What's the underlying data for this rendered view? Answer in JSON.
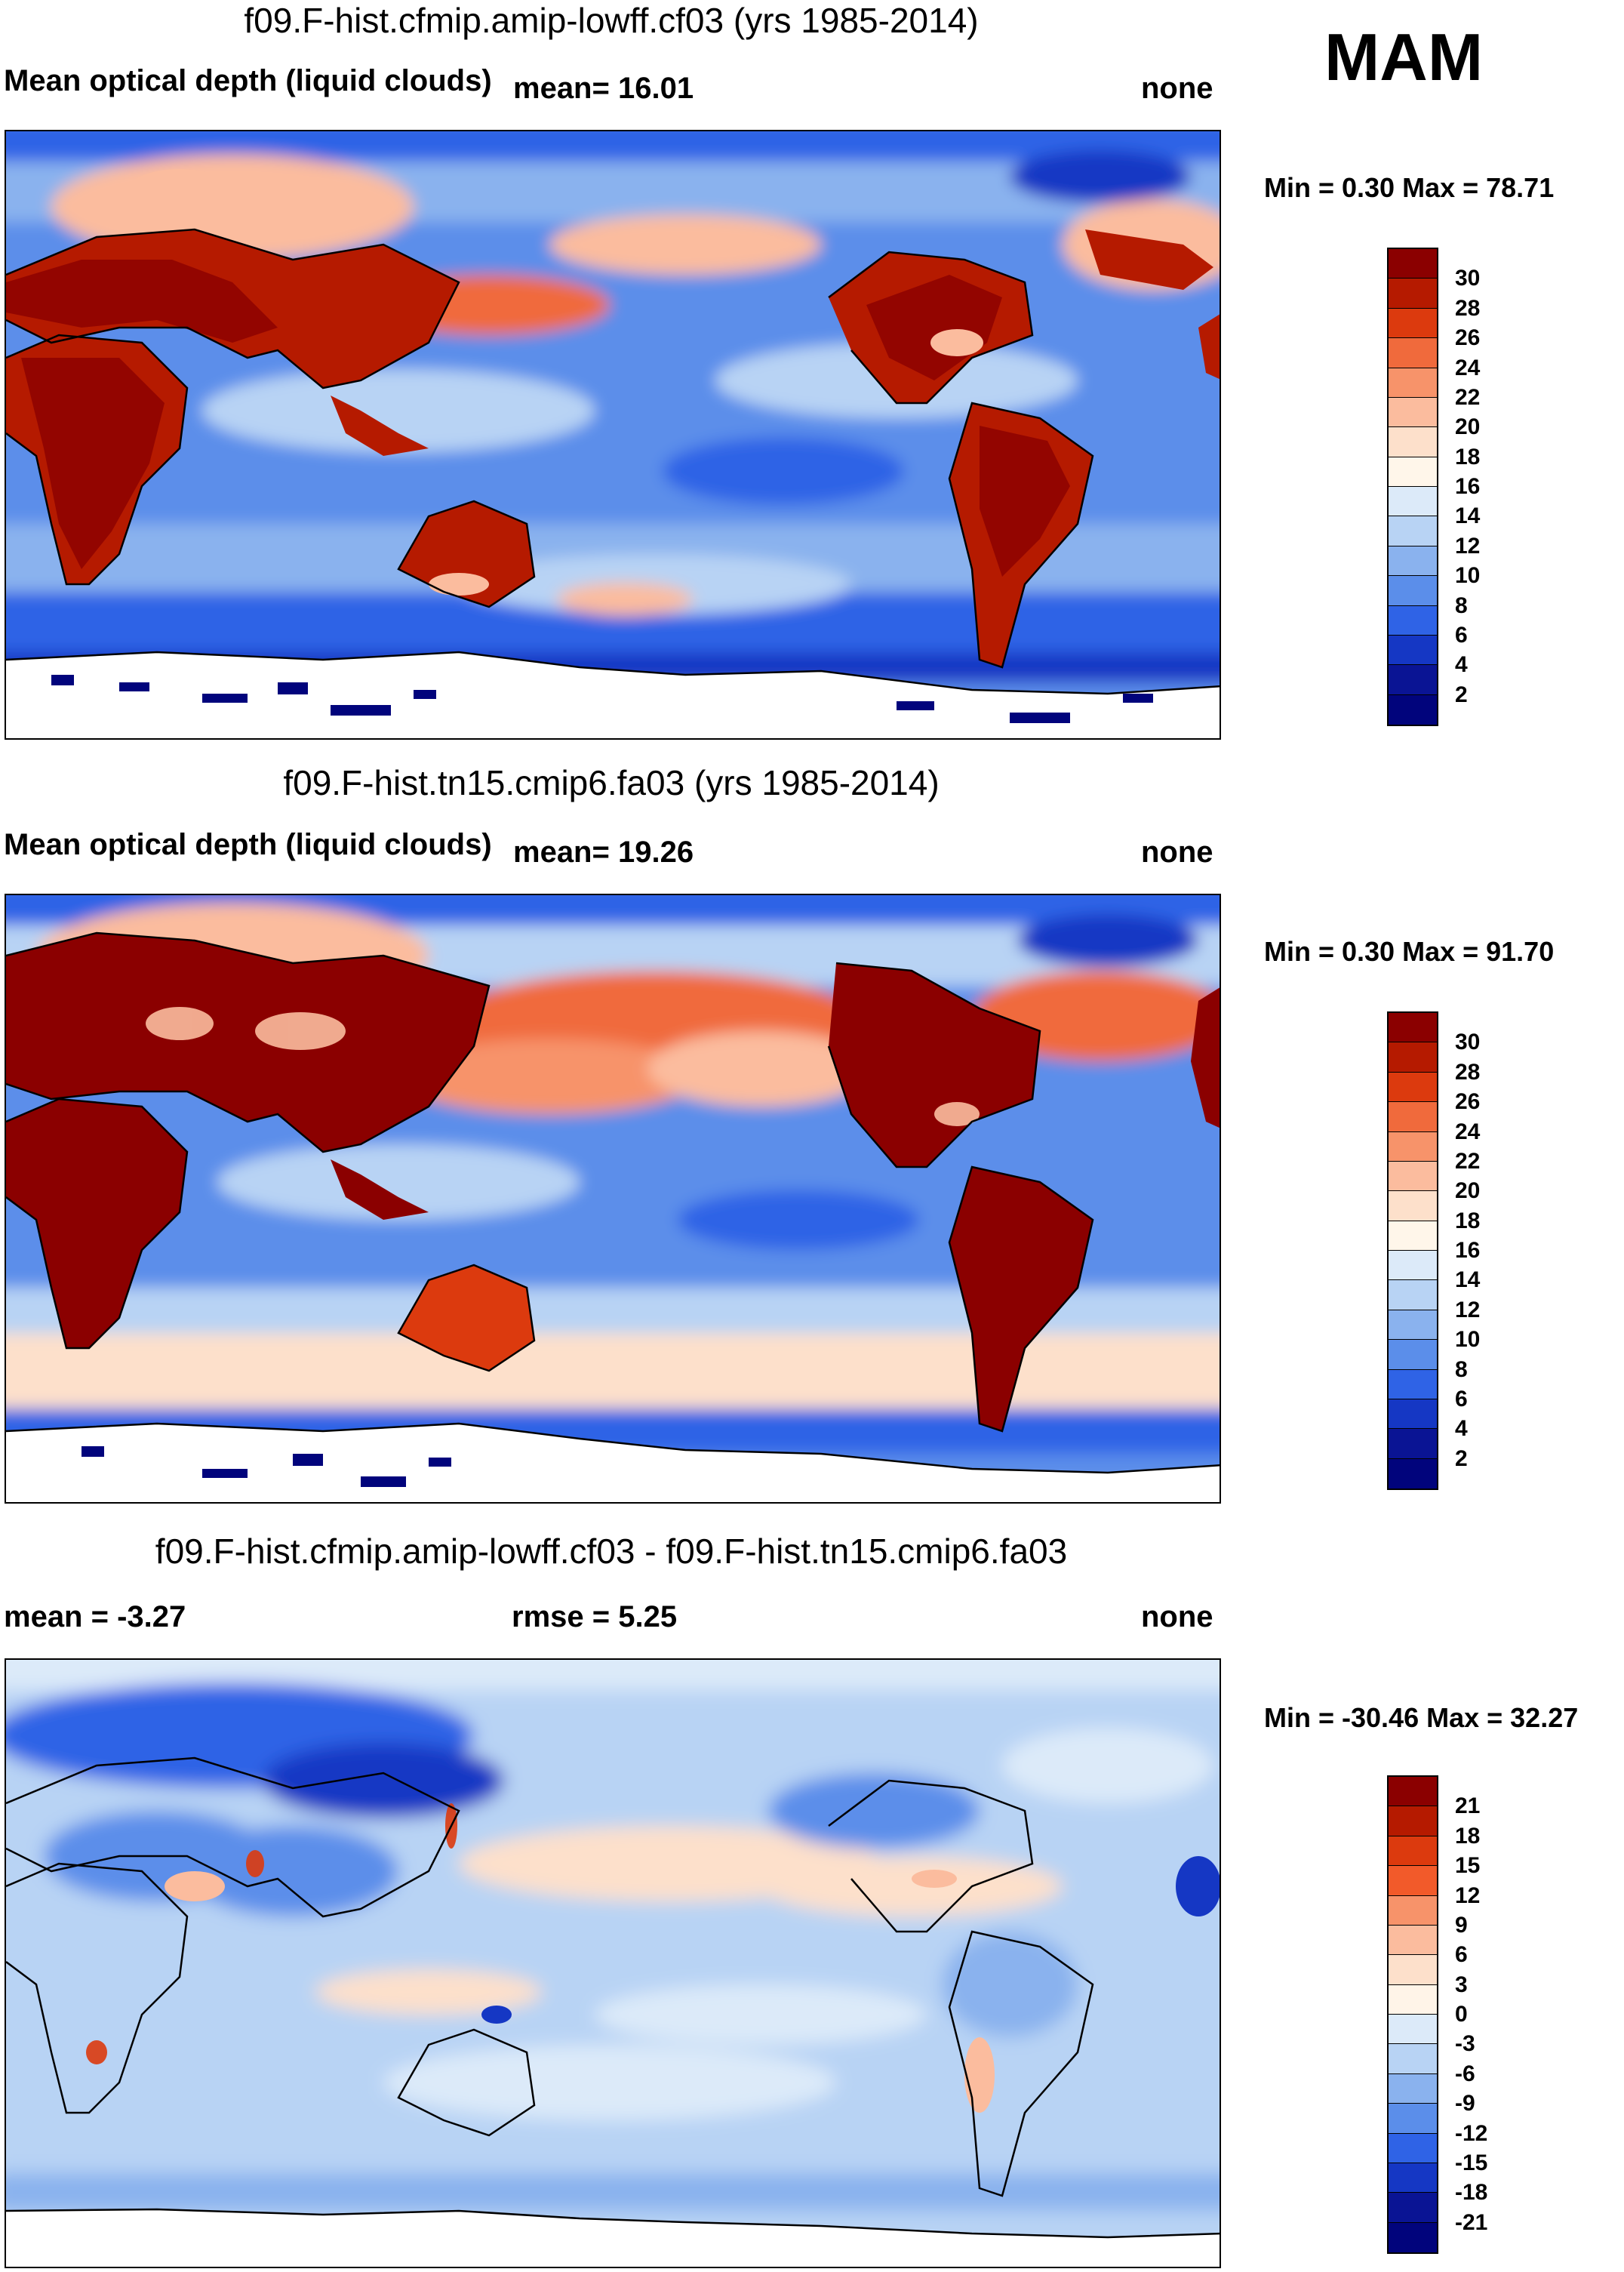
{
  "season": "MAM",
  "panels": [
    {
      "title": "f09.F-hist.cfmip.amip-lowff.cf03 (yrs 1985-2014)",
      "left_label": "Mean optical depth (liquid clouds)",
      "mid_label": "mean=  16.01",
      "right_label": "none",
      "minmax": "Min =   0.30 Max =  78.71",
      "colorbar_labels": [
        "30",
        "28",
        "26",
        "24",
        "22",
        "20",
        "18",
        "16",
        "14",
        "12",
        "10",
        "8",
        "6",
        "4",
        "2"
      ],
      "colors": [
        "#8b0000",
        "#b51a00",
        "#dc3a0e",
        "#f06a3c",
        "#f7936a",
        "#fbbc9e",
        "#fde0cb",
        "#fff6ea",
        "#dceaf9",
        "#b8d3f4",
        "#8ab2ee",
        "#5b8eea",
        "#2f63e6",
        "#1537c4",
        "#0a1494",
        "#01047c"
      ]
    },
    {
      "title": "f09.F-hist.tn15.cmip6.fa03 (yrs 1985-2014)",
      "left_label": "Mean optical depth (liquid clouds)",
      "mid_label": "mean=  19.26",
      "right_label": "none",
      "minmax": "Min =   0.30 Max =  91.70",
      "colorbar_labels": [
        "30",
        "28",
        "26",
        "24",
        "22",
        "20",
        "18",
        "16",
        "14",
        "12",
        "10",
        "8",
        "6",
        "4",
        "2"
      ],
      "colors": [
        "#8b0000",
        "#b51a00",
        "#dc3a0e",
        "#f06a3c",
        "#f7936a",
        "#fbbc9e",
        "#fde0cb",
        "#fff6ea",
        "#dceaf9",
        "#b8d3f4",
        "#8ab2ee",
        "#5b8eea",
        "#2f63e6",
        "#1537c4",
        "#0a1494",
        "#01047c"
      ]
    },
    {
      "title": "f09.F-hist.cfmip.amip-lowff.cf03 - f09.F-hist.tn15.cmip6.fa03",
      "left_label": "mean =  -3.27",
      "mid_label": "rmse =    5.25",
      "right_label": "none",
      "minmax": "Min = -30.46 Max =  32.27",
      "colorbar_labels": [
        "21",
        "18",
        "15",
        "12",
        "9",
        "6",
        "3",
        "0",
        "-3",
        "-6",
        "-9",
        "-12",
        "-15",
        "-18",
        "-21"
      ],
      "colors": [
        "#8b0000",
        "#b51a00",
        "#dc3a0e",
        "#f25a2a",
        "#f7936a",
        "#fbbc9e",
        "#fde0cb",
        "#fff4e8",
        "#dceaf9",
        "#b8d3f4",
        "#8ab2ee",
        "#5b8eea",
        "#2f63e6",
        "#1537c4",
        "#0a1494",
        "#01047c"
      ]
    }
  ]
}
